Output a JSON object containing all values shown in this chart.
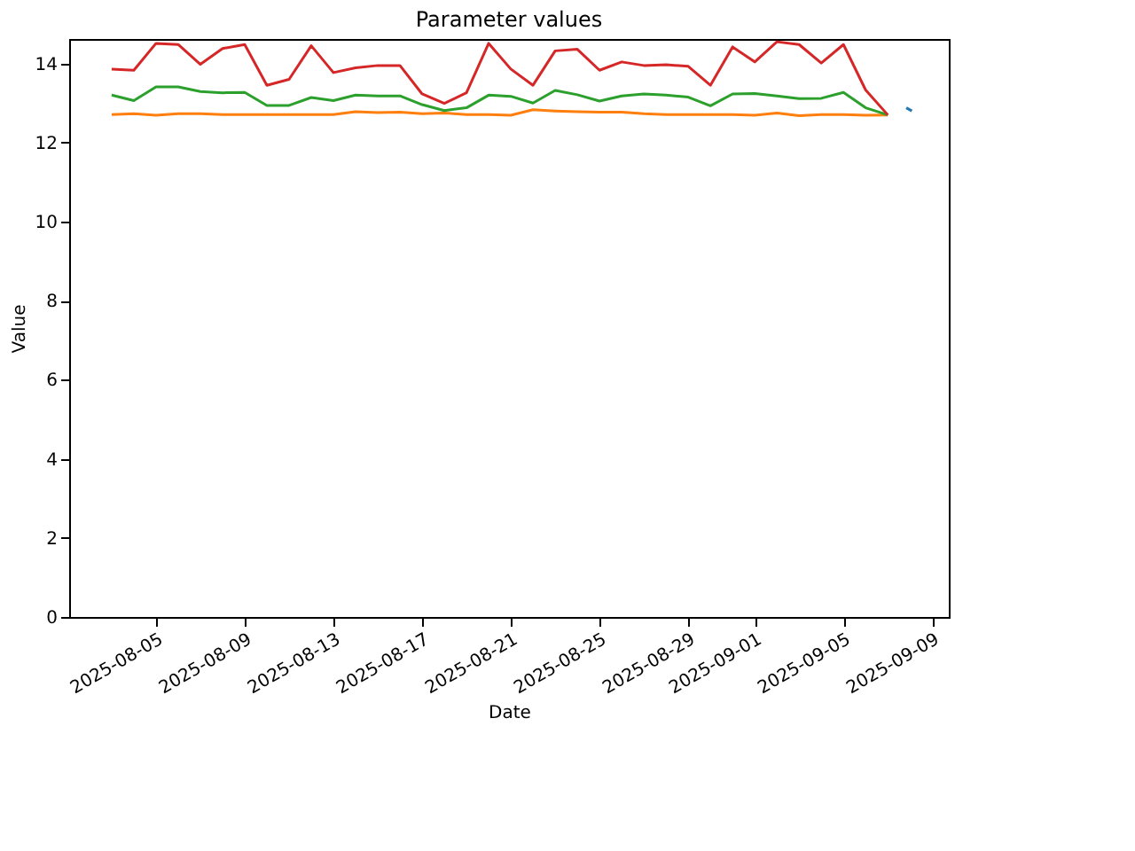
{
  "chart_data": {
    "type": "line",
    "title": "Parameter values",
    "xlabel": "Date",
    "ylabel": "Value",
    "x": [
      "2025-08-03",
      "2025-08-04",
      "2025-08-05",
      "2025-08-06",
      "2025-08-07",
      "2025-08-08",
      "2025-08-09",
      "2025-08-10",
      "2025-08-11",
      "2025-08-12",
      "2025-08-13",
      "2025-08-14",
      "2025-08-15",
      "2025-08-16",
      "2025-08-17",
      "2025-08-18",
      "2025-08-19",
      "2025-08-20",
      "2025-08-21",
      "2025-08-22",
      "2025-08-23",
      "2025-08-24",
      "2025-08-25",
      "2025-08-26",
      "2025-08-27",
      "2025-08-28",
      "2025-08-29",
      "2025-08-30",
      "2025-08-31",
      "2025-09-01",
      "2025-09-02",
      "2025-09-03",
      "2025-09-04",
      "2025-09-05",
      "2025-09-06",
      "2025-09-07"
    ],
    "series": [
      {
        "color": "#1f77b4",
        "x": [
          "2025-09-07T20:00",
          "2025-09-08T02:00"
        ],
        "values": [
          12.88,
          12.8
        ]
      },
      {
        "color": "#ff7f0e",
        "values": [
          12.71,
          12.73,
          12.69,
          12.73,
          12.73,
          12.71,
          12.71,
          12.71,
          12.71,
          12.71,
          12.71,
          12.78,
          12.76,
          12.77,
          12.73,
          12.75,
          12.71,
          12.71,
          12.69,
          12.83,
          12.8,
          12.78,
          12.77,
          12.77,
          12.73,
          12.71,
          12.71,
          12.71,
          12.71,
          12.69,
          12.75,
          12.68,
          12.71,
          12.71,
          12.69,
          12.7
        ]
      },
      {
        "color": "#2ca02c",
        "values": [
          13.2,
          13.06,
          13.41,
          13.41,
          13.29,
          13.26,
          13.27,
          12.94,
          12.94,
          13.14,
          13.06,
          13.2,
          13.18,
          13.18,
          12.96,
          12.81,
          12.88,
          13.2,
          13.17,
          13.0,
          13.32,
          13.21,
          13.05,
          13.18,
          13.23,
          13.2,
          13.15,
          12.93,
          13.23,
          13.24,
          13.18,
          13.11,
          13.12,
          13.27,
          12.88,
          12.7
        ]
      },
      {
        "color": "#d62728",
        "values": [
          13.86,
          13.83,
          14.51,
          14.48,
          13.98,
          14.38,
          14.48,
          13.45,
          13.6,
          14.45,
          13.77,
          13.89,
          13.95,
          13.95,
          13.23,
          12.99,
          13.26,
          14.51,
          13.86,
          13.45,
          14.32,
          14.36,
          13.83,
          14.04,
          13.95,
          13.97,
          13.93,
          13.45,
          14.42,
          14.04,
          14.55,
          14.48,
          14.01,
          14.48,
          13.33,
          12.7
        ]
      }
    ],
    "xlim": [
      "2025-08-01T02:00",
      "2025-09-09T18:00"
    ],
    "xticks": [
      "2025-08-05",
      "2025-08-09",
      "2025-08-13",
      "2025-08-17",
      "2025-08-21",
      "2025-08-25",
      "2025-08-29",
      "2025-09-01",
      "2025-09-05",
      "2025-09-09"
    ],
    "ylim": [
      0,
      14.62
    ],
    "yticks": [
      0,
      2,
      4,
      6,
      8,
      10,
      12,
      14
    ],
    "marker": "none",
    "line_style": "solid",
    "grid": false,
    "legend": false
  }
}
